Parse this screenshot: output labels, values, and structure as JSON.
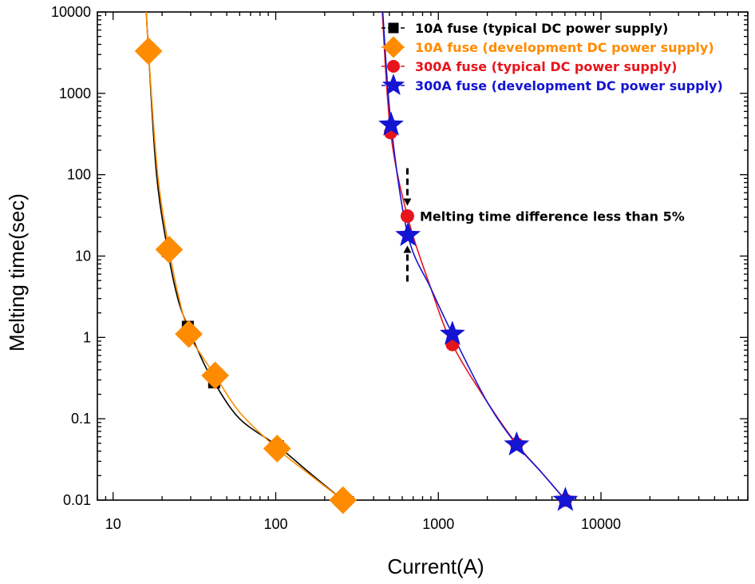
{
  "chart_data": {
    "type": "scatter",
    "xlabel": "Current(A)",
    "ylabel": "Melting time(sec)",
    "x_scale": "log",
    "y_scale": "log",
    "xlim": [
      8,
      80000
    ],
    "ylim": [
      0.01,
      10000
    ],
    "x_ticks": [
      {
        "value": 10,
        "label": "10"
      },
      {
        "value": 100,
        "label": "100"
      },
      {
        "value": 1000,
        "label": "1000"
      },
      {
        "value": 10000,
        "label": "10000"
      }
    ],
    "y_ticks": [
      {
        "value": 0.01,
        "label": "0.01"
      },
      {
        "value": 0.1,
        "label": "0.1"
      },
      {
        "value": 1,
        "label": "1"
      },
      {
        "value": 10,
        "label": "10"
      },
      {
        "value": 100,
        "label": "100"
      },
      {
        "value": 1000,
        "label": "1000"
      },
      {
        "value": 10000,
        "label": "10000"
      }
    ],
    "grid": false,
    "legend_position": "top-right",
    "series": [
      {
        "name": "10A fuse (typical DC power supply)",
        "color": "#000000",
        "marker": "square",
        "points": [
          [
            16.5,
            3300
          ],
          [
            21.7,
            11.5
          ],
          [
            28.8,
            1.35
          ],
          [
            41.8,
            0.28
          ],
          [
            103,
            0.046
          ],
          [
            259,
            0.01
          ]
        ],
        "curve": [
          [
            16.0,
            10000
          ],
          [
            16.5,
            3300
          ],
          [
            18.5,
            100
          ],
          [
            21.7,
            11.5
          ],
          [
            25,
            3
          ],
          [
            28.8,
            1.35
          ],
          [
            35,
            0.55
          ],
          [
            41.8,
            0.28
          ],
          [
            60,
            0.1
          ],
          [
            103,
            0.046
          ],
          [
            160,
            0.022
          ],
          [
            259,
            0.01
          ]
        ]
      },
      {
        "name": "10A fuse (development DC power supply)",
        "color": "#ff8c00",
        "marker": "diamond",
        "points": [
          [
            16.5,
            3300
          ],
          [
            22.1,
            12.0
          ],
          [
            29.2,
            1.1
          ],
          [
            42.4,
            0.34
          ],
          [
            102,
            0.043
          ],
          [
            259,
            0.01
          ]
        ],
        "curve": [
          [
            16.0,
            10000
          ],
          [
            16.5,
            3300
          ],
          [
            18.8,
            100
          ],
          [
            22.1,
            12.0
          ],
          [
            25,
            3.5
          ],
          [
            29.2,
            1.1
          ],
          [
            35,
            0.6
          ],
          [
            42.4,
            0.34
          ],
          [
            60,
            0.12
          ],
          [
            102,
            0.043
          ],
          [
            160,
            0.021
          ],
          [
            259,
            0.01
          ]
        ]
      },
      {
        "name": "300A fuse (typical DC power supply)",
        "color": "#e8141c",
        "marker": "circle",
        "points": [
          [
            509,
            330
          ],
          [
            645,
            31
          ],
          [
            1220,
            0.82
          ],
          [
            3030,
            0.049
          ],
          [
            6040,
            0.01
          ]
        ],
        "curve": [
          [
            452,
            10000
          ],
          [
            509,
            330
          ],
          [
            645,
            31
          ],
          [
            900,
            4
          ],
          [
            1220,
            0.82
          ],
          [
            2000,
            0.16
          ],
          [
            3030,
            0.049
          ],
          [
            4300,
            0.022
          ],
          [
            6040,
            0.01
          ]
        ]
      },
      {
        "name": "300A fuse (development DC power supply)",
        "color": "#1414d2",
        "marker": "star",
        "points": [
          [
            512,
            410
          ],
          [
            650,
            18
          ],
          [
            1220,
            1.1
          ],
          [
            3030,
            0.048
          ],
          [
            6040,
            0.01
          ]
        ],
        "curve": [
          [
            455,
            10000
          ],
          [
            512,
            410
          ],
          [
            650,
            18
          ],
          [
            900,
            4
          ],
          [
            1220,
            1.1
          ],
          [
            2000,
            0.16
          ],
          [
            3030,
            0.048
          ],
          [
            4300,
            0.022
          ],
          [
            6040,
            0.01
          ]
        ]
      }
    ],
    "annotations": [
      {
        "text": "Melting time difference less than 5%",
        "x": 860,
        "y": 30
      }
    ]
  }
}
